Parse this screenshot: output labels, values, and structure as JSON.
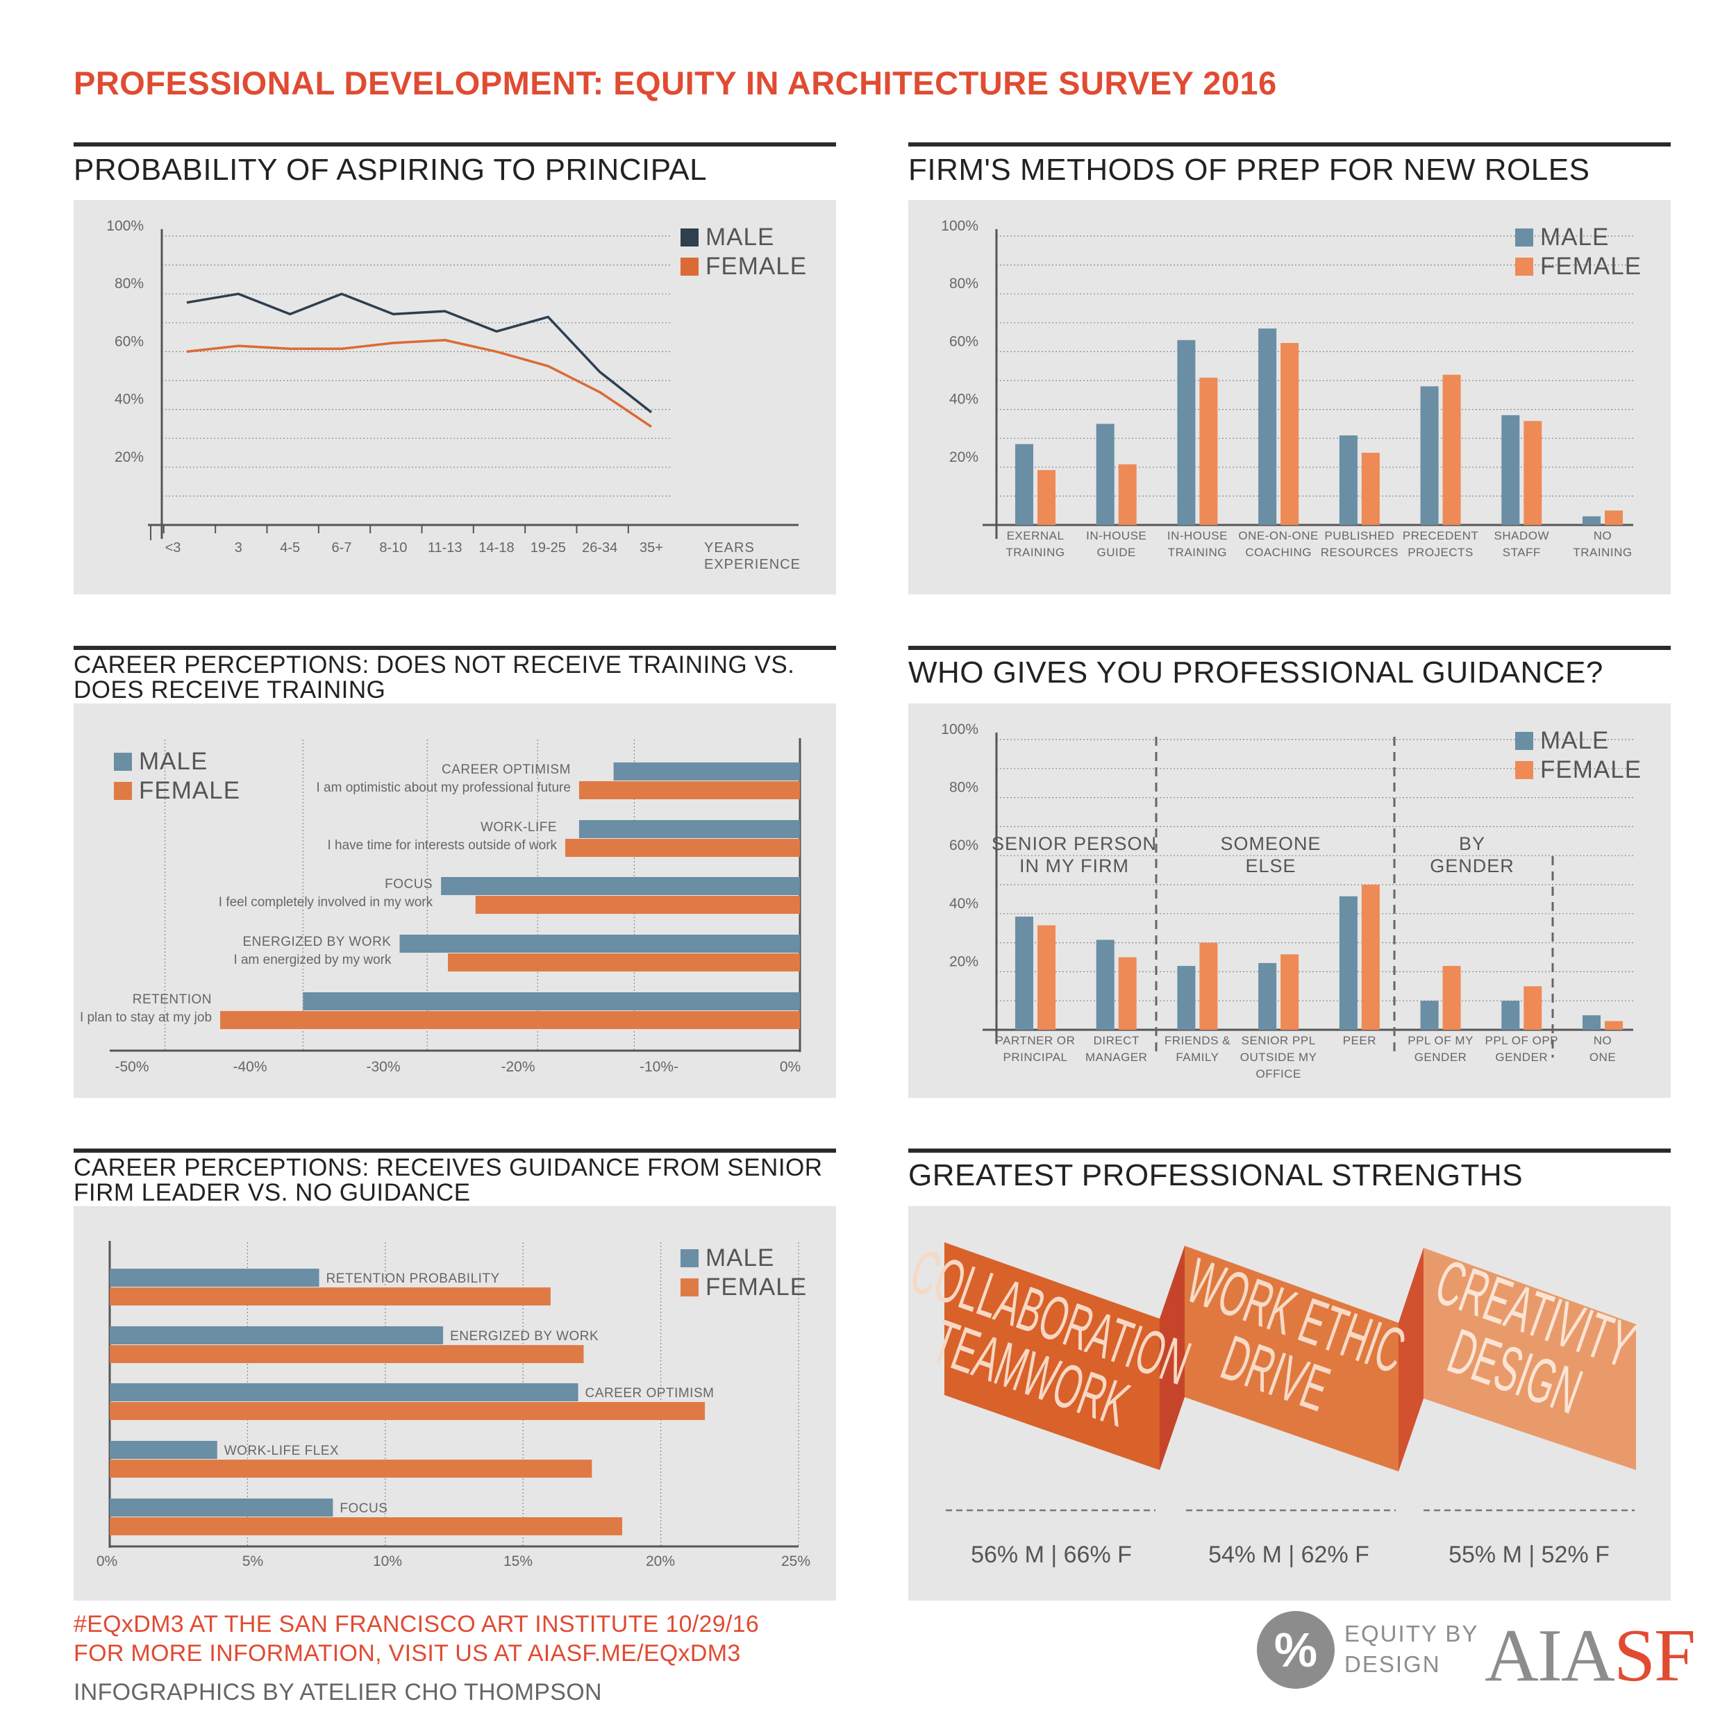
{
  "main_title": "PROFESSIONAL DEVELOPMENT: EQUITY IN ARCHITECTURE SURVEY 2016",
  "colors": {
    "male_line": "#2e3f4f",
    "female_line": "#dc6a35",
    "male_bar": "#6a8ea4",
    "female_bar": "#ee8a55",
    "female_bar_dark": "#e07a45",
    "title_red": "#e04b32"
  },
  "footer": {
    "line1": "#EQxDM3 AT THE SAN FRANCISCO ART INSTITUTE 10/29/16",
    "line2": "FOR MORE INFORMATION, VISIT US AT AIASF.ME/EQxDM3",
    "line3": "INFOGRAPHICS BY ATELIER CHO THOMPSON"
  },
  "logos": {
    "eq_symbol": "%",
    "eq_line1": "EQUITY BY",
    "eq_line2": "DESIGN",
    "aia": "AIA",
    "sf": "SF"
  },
  "chart_data": [
    {
      "id": "aspiring",
      "type": "line",
      "title": "PROBABILITY OF ASPIRING TO PRINCIPAL",
      "xlabel_lines": [
        "YEARS",
        "EXPERIENCE"
      ],
      "categories": [
        "<3",
        "3",
        "4-5",
        "6-7",
        "8-10",
        "11-13",
        "14-18",
        "19-25",
        "26-34",
        "35+"
      ],
      "ylim": [
        0,
        100
      ],
      "yticks": [
        20,
        40,
        60,
        80,
        100
      ],
      "ytick_labels": [
        "20%",
        "40%",
        "60%",
        "80%",
        "100%"
      ],
      "legend_position": "top-right",
      "series": [
        {
          "name": "MALE",
          "values": [
            77,
            80,
            73,
            80,
            73,
            74,
            67,
            72,
            53,
            39
          ]
        },
        {
          "name": "FEMALE",
          "values": [
            60,
            62,
            61,
            61,
            63,
            64,
            60,
            55,
            46,
            34
          ]
        }
      ]
    },
    {
      "id": "prep",
      "type": "bar",
      "title": "FIRM'S METHODS OF PREP FOR NEW ROLES",
      "categories": [
        [
          "EXERNAL",
          "TRAINING"
        ],
        [
          "IN-HOUSE",
          "GUIDE"
        ],
        [
          "IN-HOUSE",
          "TRAINING"
        ],
        [
          "ONE-ON-ONE",
          "COACHING"
        ],
        [
          "PUBLISHED",
          "RESOURCES"
        ],
        [
          "PRECEDENT",
          "PROJECTS"
        ],
        [
          "SHADOW",
          "STAFF"
        ],
        [
          "NO",
          "TRAINING"
        ]
      ],
      "ylim": [
        0,
        100
      ],
      "yticks": [
        20,
        40,
        60,
        80,
        100
      ],
      "ytick_labels": [
        "20%",
        "40%",
        "60%",
        "80%",
        "100%"
      ],
      "legend_position": "top-right",
      "series": [
        {
          "name": "MALE",
          "values": [
            28,
            35,
            64,
            68,
            31,
            48,
            38,
            3
          ]
        },
        {
          "name": "FEMALE",
          "values": [
            19,
            21,
            51,
            63,
            25,
            52,
            36,
            5
          ]
        }
      ]
    },
    {
      "id": "training",
      "type": "bar",
      "orientation": "horizontal",
      "title_lines": [
        "CAREER PERCEPTIONS: DOES NOT RECEIVE TRAINING VS.",
        "DOES RECEIVE TRAINING"
      ],
      "xlim": [
        -50,
        0
      ],
      "xticks": [
        -50,
        -40,
        -30,
        -20,
        -10,
        0
      ],
      "xtick_labels": [
        "-50%",
        "-40%",
        "-30%",
        "-20%",
        "-10%-",
        "0%"
      ],
      "legend_position": "top-left",
      "items": [
        {
          "label": "CAREER OPTIMISM",
          "sublabel": "I am optimistic about my professional future",
          "male": -13.5,
          "female": -16
        },
        {
          "label": "WORK-LIFE",
          "sublabel": "I have time for interests outside of work",
          "male": -16,
          "female": -17
        },
        {
          "label": "FOCUS",
          "sublabel": "I feel completely involved in my work",
          "male": -26,
          "female": -23.5
        },
        {
          "label": "ENERGIZED BY WORK",
          "sublabel": "I am energized by my work",
          "male": -29,
          "female": -25.5
        },
        {
          "label": "RETENTION",
          "sublabel": "I plan to stay at my job",
          "male": -36,
          "female": -42
        }
      ],
      "series_names": [
        "MALE",
        "FEMALE"
      ]
    },
    {
      "id": "guidance",
      "type": "bar",
      "title": "WHO GIVES YOU PROFESSIONAL GUIDANCE?",
      "categories": [
        [
          "PARTNER OR",
          "PRINCIPAL"
        ],
        [
          "DIRECT",
          "MANAGER"
        ],
        [
          "FRIENDS &",
          "FAMILY"
        ],
        [
          "SENIOR PPL",
          "OUTSIDE MY",
          "OFFICE"
        ],
        [
          "PEER"
        ],
        [
          "PPL OF MY",
          "GENDER"
        ],
        [
          "PPL OF OPP",
          "GENDER"
        ],
        [
          "NO",
          "ONE"
        ]
      ],
      "groups": [
        {
          "label_lines": [
            "SENIOR PERSON",
            "IN MY FIRM"
          ]
        },
        {
          "label_lines": [
            "SOMEONE",
            "ELSE"
          ]
        },
        {
          "label_lines": [
            "BY",
            "GENDER"
          ]
        }
      ],
      "ylim": [
        0,
        100
      ],
      "yticks": [
        20,
        40,
        60,
        80,
        100
      ],
      "ytick_labels": [
        "20%",
        "40%",
        "60%",
        "80%",
        "100%"
      ],
      "legend_position": "top-right",
      "series": [
        {
          "name": "MALE",
          "values": [
            39,
            31,
            22,
            23,
            46,
            10,
            10,
            5
          ]
        },
        {
          "name": "FEMALE",
          "values": [
            36,
            25,
            30,
            26,
            50,
            22,
            15,
            3
          ]
        }
      ]
    },
    {
      "id": "senior",
      "type": "bar",
      "orientation": "horizontal",
      "title_lines": [
        "CAREER PERCEPTIONS: RECEIVES GUIDANCE FROM SENIOR",
        "FIRM LEADER VS. NO GUIDANCE"
      ],
      "xlim": [
        0,
        25
      ],
      "xticks": [
        0,
        5,
        10,
        15,
        20,
        25
      ],
      "xtick_labels": [
        "0%",
        "5%",
        "10%",
        "15%",
        "20%",
        "25%"
      ],
      "legend_position": "top-right",
      "items": [
        {
          "label": "RETENTION PROBABILITY",
          "male": 7.6,
          "female": 16
        },
        {
          "label": "ENERGIZED BY WORK",
          "male": 12.1,
          "female": 17.2
        },
        {
          "label": "CAREER OPTIMISM",
          "male": 17,
          "female": 21.6
        },
        {
          "label": "WORK-LIFE FLEX",
          "male": 3.9,
          "female": 17.5
        },
        {
          "label": "FOCUS",
          "male": 8.1,
          "female": 18.6
        }
      ],
      "series_names": [
        "MALE",
        "FEMALE"
      ]
    },
    {
      "id": "strengths",
      "type": "table",
      "title": "GREATEST PROFESSIONAL STRENGTHS",
      "items": [
        {
          "line1": "COLLABORATION",
          "line2": "TEAMWORK",
          "stat": "56% M | 66% F"
        },
        {
          "line1": "WORK ETHIC",
          "line2": "DRIVE",
          "stat": "54% M | 62% F"
        },
        {
          "line1": "CREATIVITY",
          "line2": "DESIGN",
          "stat": "55% M | 52% F"
        }
      ]
    }
  ]
}
